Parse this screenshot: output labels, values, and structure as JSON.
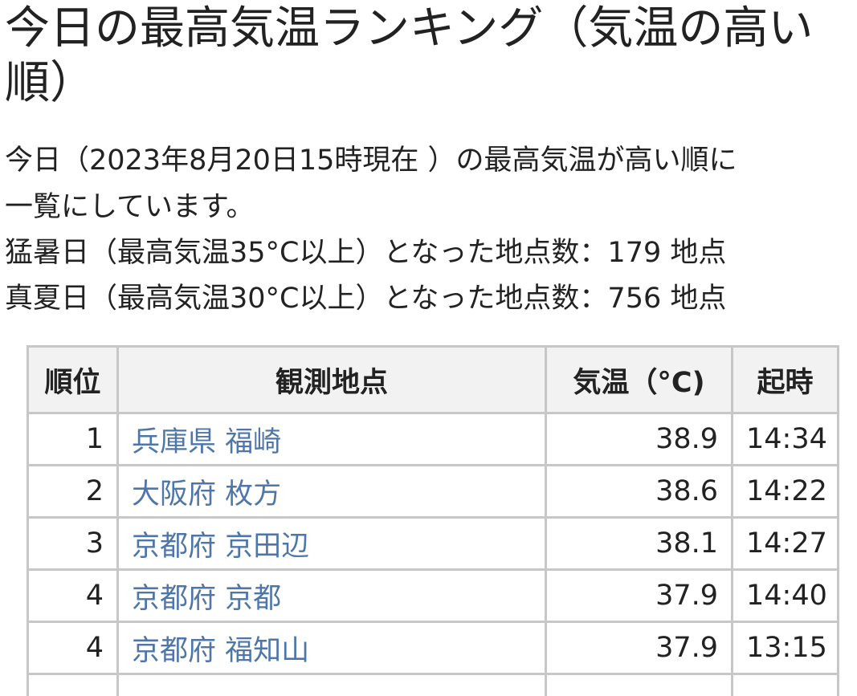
{
  "title": "今日の最高気温ランキング（気温の高い順）",
  "description": {
    "line1": "今日（2023年8月20日15時現在 ）の最高気温が高い順に",
    "line2": "一覧にしています。",
    "extreme_heat": "猛暑日（最高気温35°C以上）となった地点数：179 地点",
    "summer_day": "真夏日（最高気温30°C以上）となった地点数：756 地点"
  },
  "table": {
    "headers": {
      "rank": "順位",
      "station": "観測地点",
      "temperature": "気温（°C)",
      "time": "起時"
    },
    "rows": [
      {
        "rank": "1",
        "station": "兵庫県 福崎",
        "temperature": "38.9",
        "time": "14:34"
      },
      {
        "rank": "2",
        "station": "大阪府 枚方",
        "temperature": "38.6",
        "time": "14:22"
      },
      {
        "rank": "3",
        "station": "京都府 京田辺",
        "temperature": "38.1",
        "time": "14:27"
      },
      {
        "rank": "4",
        "station": "京都府 京都",
        "temperature": "37.9",
        "time": "14:40"
      },
      {
        "rank": "4",
        "station": "京都府 福知山",
        "temperature": "37.9",
        "time": "13:15"
      },
      {
        "rank": "",
        "station": "",
        "temperature": "",
        "time": ""
      }
    ]
  },
  "colors": {
    "link": "#4f76a8",
    "border": "#c7c7c7",
    "header_bg": "#f2f2f2",
    "text": "#222222"
  }
}
